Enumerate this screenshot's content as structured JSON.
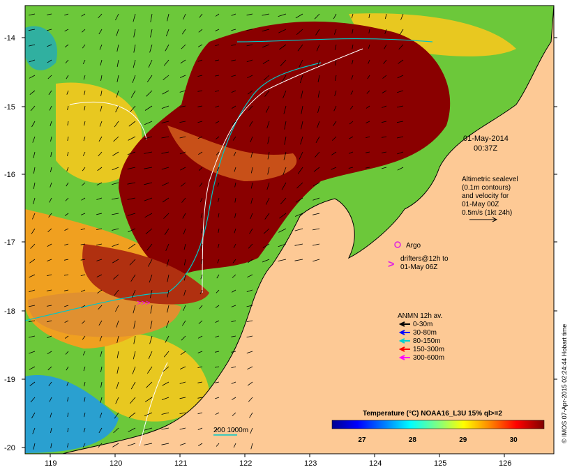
{
  "map": {
    "lon_ticks": [
      "119",
      "120",
      "121",
      "122",
      "123",
      "124",
      "125",
      "126"
    ],
    "lat_ticks": [
      "-14",
      "-15",
      "-16",
      "-17",
      "-18",
      "-19",
      "-20"
    ],
    "lon_range": [
      118.6,
      126.7
    ],
    "lat_range": [
      -13.6,
      -20.1
    ]
  },
  "timestamp": {
    "date": "01-May-2014",
    "time": "00:37Z"
  },
  "altimetry_note": [
    "Altimetric sealevel",
    "(0.1m contours)",
    "and velocity for",
    "01-May 00Z",
    "0.5m/s (1kt 24h)"
  ],
  "argo": {
    "label": "Argo",
    "color": "#e020e0"
  },
  "drifters": {
    "lines": [
      "drifters@12h to",
      "01-May 06Z"
    ],
    "color": "#e020e0"
  },
  "anmn": {
    "title": "ANMN 12h av.",
    "items": [
      {
        "label": "0-30m",
        "color": "#000000"
      },
      {
        "label": "30-80m",
        "color": "#0000ff"
      },
      {
        "label": "80-150m",
        "color": "#00d0d0"
      },
      {
        "label": "150-300m",
        "color": "#ff0000"
      },
      {
        "label": "300-600m",
        "color": "#ff00ff"
      }
    ]
  },
  "depth_legend": {
    "label": "200 1000m",
    "color": "#00c8c8"
  },
  "colorbar": {
    "title": "Temperature (°C) NOAA16_L3U 15% ql>=2",
    "ticks": [
      "27",
      "28",
      "29",
      "30"
    ],
    "range": [
      26.4,
      30.6
    ],
    "colors": [
      "#00008f",
      "#0000ff",
      "#0080ff",
      "#00ffff",
      "#80ff80",
      "#ffff00",
      "#ff8000",
      "#ff0000",
      "#800000"
    ]
  },
  "credit": "© IMOS 07-Apr-2015 02:24:44 Hobart time",
  "palette": {
    "land": "#fdc995",
    "hot": "#8a0000",
    "warm": "#c8501a",
    "mid": "#e8a020",
    "cool": "#40c040",
    "sea_border": "#ffffff"
  }
}
